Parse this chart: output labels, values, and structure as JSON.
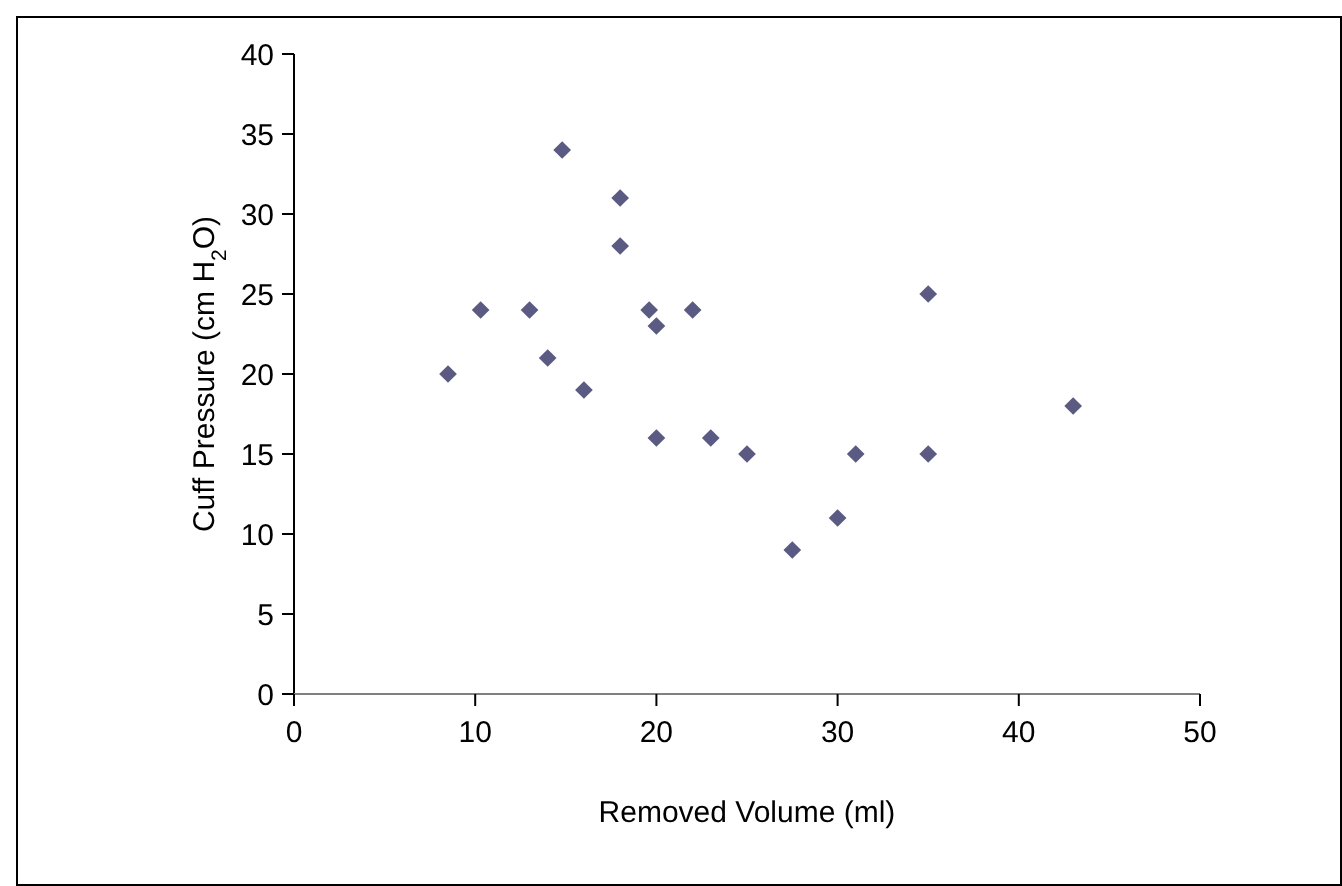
{
  "chart_data": {
    "type": "scatter",
    "xlabel": "Removed Volume (ml)",
    "ylabel": "Cuff Pressure (cm H$_{2}$O)",
    "x": [
      8.5,
      10.3,
      13,
      14,
      14.8,
      16,
      18,
      18,
      19.6,
      20,
      20,
      22,
      23,
      25,
      27.5,
      30,
      31,
      35,
      35,
      43
    ],
    "series": [
      {
        "color": "#5b5a82",
        "values": [
          20,
          24,
          24,
          21,
          34,
          19,
          31,
          28,
          24,
          23,
          16,
          24,
          16,
          15,
          9,
          11,
          15,
          25,
          15,
          18
        ]
      }
    ],
    "xlim": [
      0,
      50
    ],
    "xticks": [
      0,
      10,
      20,
      30,
      40,
      50
    ],
    "ylim": [
      0,
      40
    ],
    "yticks": [
      0,
      5,
      10,
      15,
      20,
      25,
      30,
      35,
      40
    ],
    "marker": "diamond",
    "grid": false
  }
}
